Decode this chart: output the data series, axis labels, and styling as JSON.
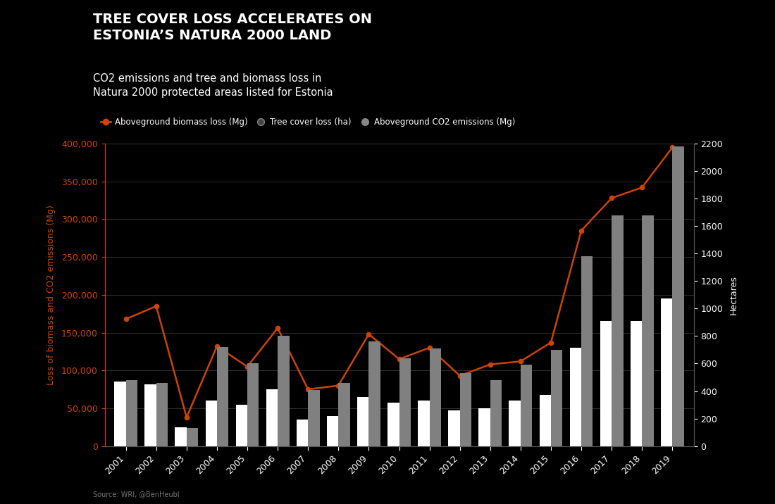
{
  "title_main": "TREE COVER LOSS ACCELERATES ON\nESTONIA’S NATURA 2000 LAND",
  "subtitle": "CO2 emissions and tree and biomass loss in\nNatura 2000 protected areas listed for Estonia",
  "source": "Source: WRI, @BenHeubl",
  "years": [
    2001,
    2002,
    2003,
    2004,
    2005,
    2006,
    2007,
    2008,
    2009,
    2010,
    2011,
    2012,
    2013,
    2014,
    2015,
    2016,
    2017,
    2018,
    2019
  ],
  "biomass_loss": [
    168000,
    185000,
    38000,
    132000,
    105000,
    156000,
    75000,
    80000,
    148000,
    115000,
    130000,
    93000,
    108000,
    112000,
    137000,
    285000,
    328000,
    342000,
    395000
  ],
  "tree_cover_loss_ha": [
    480,
    460,
    130,
    720,
    600,
    800,
    410,
    460,
    760,
    640,
    710,
    530,
    480,
    590,
    700,
    1380,
    1680,
    1680,
    2180
  ],
  "co2_emissions": [
    85000,
    82000,
    25000,
    60000,
    55000,
    75000,
    35000,
    40000,
    65000,
    57000,
    60000,
    47000,
    50000,
    60000,
    68000,
    130000,
    165000,
    165000,
    195000
  ],
  "left_ylim": [
    0,
    400000
  ],
  "right_ylim": [
    0,
    2200
  ],
  "left_yticks": [
    0,
    50000,
    100000,
    150000,
    200000,
    250000,
    300000,
    350000,
    400000
  ],
  "right_yticks": [
    0,
    200,
    400,
    600,
    800,
    1000,
    1200,
    1400,
    1600,
    1800,
    2000,
    2200
  ],
  "left_ylabel": "Loss of biomass and CO2 emissions (Mg)",
  "right_ylabel": "Hectares",
  "background_color": "#000000",
  "plot_bg_color": "#000000",
  "grid_color": "#ffffff",
  "bar_color_tree": "#808080",
  "bar_color_co2": "#ffffff",
  "line_color": "#cc4400",
  "title_color": "#ffffff",
  "label_color": "#ffffff",
  "tick_color": "#cc4400",
  "right_tick_color": "#ffffff",
  "legend_biomass": "Aboveground biomass loss (Mg)",
  "legend_tree": "Tree cover loss (ha)",
  "legend_co2": "Aboveground CO2 emissions (Mg)"
}
